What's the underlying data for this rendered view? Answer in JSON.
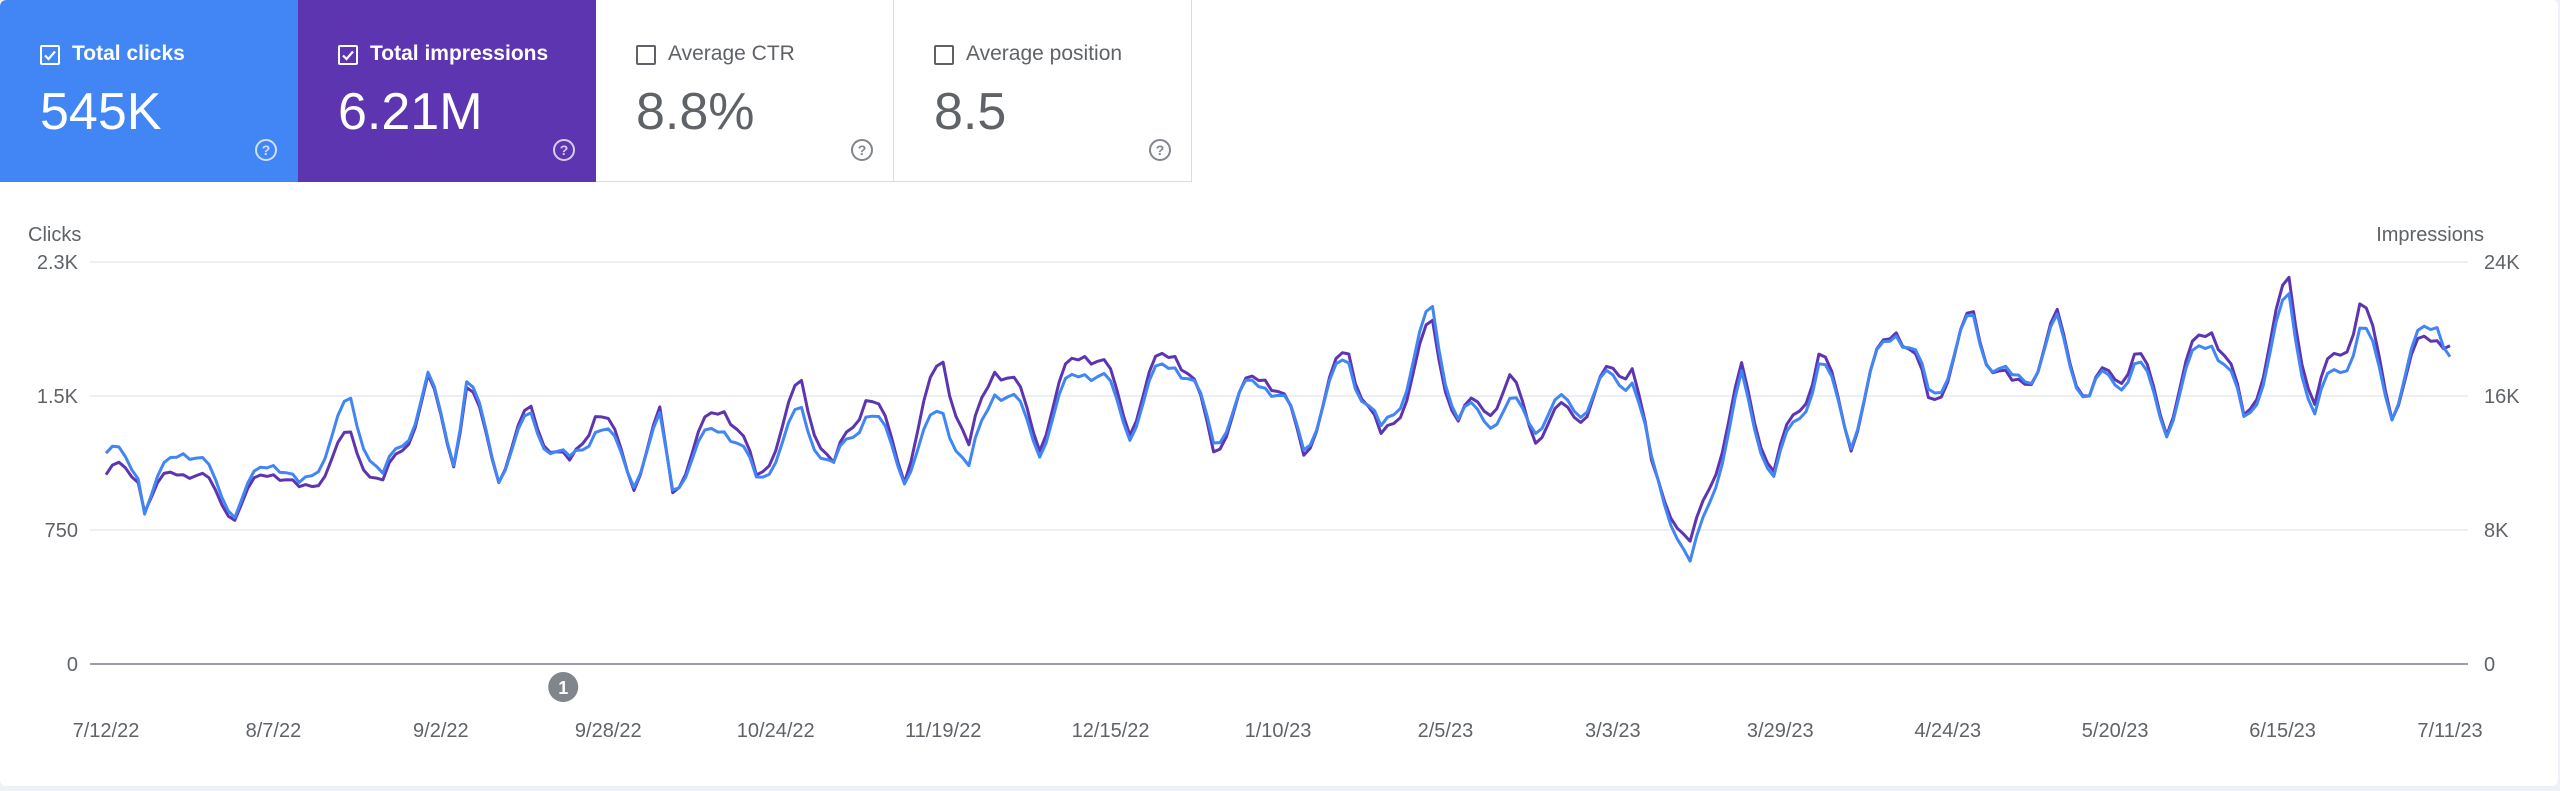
{
  "metrics": [
    {
      "label": "Total clicks",
      "value": "545K",
      "selected": true,
      "color": "#4285f4"
    },
    {
      "label": "Total impressions",
      "value": "6.21M",
      "selected": true,
      "color": "#5e35b1"
    },
    {
      "label": "Average CTR",
      "value": "8.8%",
      "selected": false
    },
    {
      "label": "Average position",
      "value": "8.5",
      "selected": false
    }
  ],
  "chart_data": {
    "type": "line",
    "left_axis_label": "Clicks",
    "right_axis_label": "Impressions",
    "left_ticks": [
      "0",
      "750",
      "1.5K",
      "2.3K"
    ],
    "right_ticks": [
      "0",
      "8K",
      "16K",
      "24K"
    ],
    "ylim_left": [
      0,
      2250
    ],
    "ylim_right": [
      0,
      24000
    ],
    "x_tick_labels": [
      "7/12/22",
      "8/7/22",
      "9/2/22",
      "9/28/22",
      "10/24/22",
      "11/19/22",
      "12/15/22",
      "1/10/23",
      "2/5/23",
      "3/3/23",
      "3/29/23",
      "4/24/23",
      "5/20/23",
      "6/15/23",
      "7/11/23"
    ],
    "date_range": [
      "7/12/22",
      "7/11/23"
    ],
    "annotation": {
      "label": "1",
      "date": "9/21/22"
    },
    "grid": true,
    "series": [
      {
        "name": "Clicks",
        "axis": "left",
        "color": "#4285f4",
        "points": [
          [
            0,
            1180
          ],
          [
            5,
            1100
          ],
          [
            6,
            880
          ],
          [
            12,
            1250
          ],
          [
            20,
            860
          ],
          [
            26,
            1180
          ],
          [
            30,
            960
          ],
          [
            38,
            1450
          ],
          [
            43,
            1020
          ],
          [
            50,
            1560
          ],
          [
            54,
            1180
          ],
          [
            56,
            1580
          ],
          [
            61,
            1080
          ],
          [
            66,
            1370
          ],
          [
            72,
            1100
          ],
          [
            76,
            1360
          ],
          [
            82,
            1050
          ],
          [
            86,
            1330
          ],
          [
            88,
            1000
          ],
          [
            96,
            1380
          ],
          [
            101,
            1020
          ],
          [
            108,
            1400
          ],
          [
            113,
            1080
          ],
          [
            118,
            1450
          ],
          [
            124,
            1070
          ],
          [
            130,
            1440
          ],
          [
            134,
            1060
          ],
          [
            138,
            1600
          ],
          [
            145,
            1230
          ],
          [
            152,
            1720
          ],
          [
            159,
            1330
          ],
          [
            166,
            1760
          ],
          [
            172,
            1270
          ],
          [
            180,
            1640
          ],
          [
            186,
            1230
          ],
          [
            193,
            1730
          ],
          [
            198,
            1260
          ],
          [
            206,
            1950
          ],
          [
            210,
            1370
          ],
          [
            218,
            1420
          ],
          [
            222,
            1370
          ],
          [
            230,
            1480
          ],
          [
            237,
            1650
          ],
          [
            240,
            1100
          ],
          [
            246,
            550
          ],
          [
            254,
            1550
          ],
          [
            259,
            1050
          ],
          [
            266,
            1680
          ],
          [
            271,
            1280
          ],
          [
            278,
            1950
          ],
          [
            283,
            1500
          ],
          [
            290,
            1900
          ],
          [
            296,
            1530
          ],
          [
            303,
            1850
          ],
          [
            308,
            1500
          ],
          [
            315,
            1680
          ],
          [
            320,
            1350
          ],
          [
            327,
            1890
          ],
          [
            332,
            1350
          ],
          [
            339,
            2020
          ],
          [
            343,
            1400
          ],
          [
            350,
            1880
          ],
          [
            355,
            1450
          ],
          [
            362,
            2000
          ],
          [
            364,
            1720
          ]
        ]
      },
      {
        "name": "Impressions",
        "axis": "right",
        "color": "#5e35b1",
        "points": [
          [
            0,
            11300
          ],
          [
            5,
            11500
          ],
          [
            6,
            9500
          ],
          [
            12,
            12000
          ],
          [
            20,
            9000
          ],
          [
            26,
            12000
          ],
          [
            30,
            10000
          ],
          [
            38,
            13500
          ],
          [
            43,
            10500
          ],
          [
            50,
            16500
          ],
          [
            54,
            12500
          ],
          [
            56,
            16500
          ],
          [
            61,
            11500
          ],
          [
            66,
            15000
          ],
          [
            72,
            11500
          ],
          [
            76,
            15500
          ],
          [
            82,
            11000
          ],
          [
            86,
            14500
          ],
          [
            88,
            10500
          ],
          [
            96,
            16000
          ],
          [
            101,
            11000
          ],
          [
            108,
            16500
          ],
          [
            113,
            11500
          ],
          [
            118,
            16500
          ],
          [
            124,
            11500
          ],
          [
            130,
            18500
          ],
          [
            134,
            12500
          ],
          [
            138,
            18500
          ],
          [
            145,
            13500
          ],
          [
            152,
            19500
          ],
          [
            159,
            14500
          ],
          [
            166,
            19500
          ],
          [
            172,
            13000
          ],
          [
            180,
            18000
          ],
          [
            186,
            12800
          ],
          [
            193,
            19000
          ],
          [
            198,
            13000
          ],
          [
            206,
            20000
          ],
          [
            210,
            14500
          ],
          [
            218,
            16500
          ],
          [
            222,
            14000
          ],
          [
            230,
            15500
          ],
          [
            237,
            18500
          ],
          [
            240,
            11500
          ],
          [
            246,
            7000
          ],
          [
            254,
            17000
          ],
          [
            259,
            11500
          ],
          [
            266,
            18500
          ],
          [
            271,
            13500
          ],
          [
            278,
            21000
          ],
          [
            283,
            15500
          ],
          [
            290,
            20500
          ],
          [
            296,
            16000
          ],
          [
            303,
            20000
          ],
          [
            308,
            16000
          ],
          [
            315,
            18500
          ],
          [
            320,
            14500
          ],
          [
            327,
            21000
          ],
          [
            332,
            14500
          ],
          [
            339,
            22500
          ],
          [
            343,
            15500
          ],
          [
            350,
            21500
          ],
          [
            355,
            15500
          ],
          [
            362,
            20500
          ],
          [
            364,
            19000
          ]
        ]
      }
    ]
  }
}
